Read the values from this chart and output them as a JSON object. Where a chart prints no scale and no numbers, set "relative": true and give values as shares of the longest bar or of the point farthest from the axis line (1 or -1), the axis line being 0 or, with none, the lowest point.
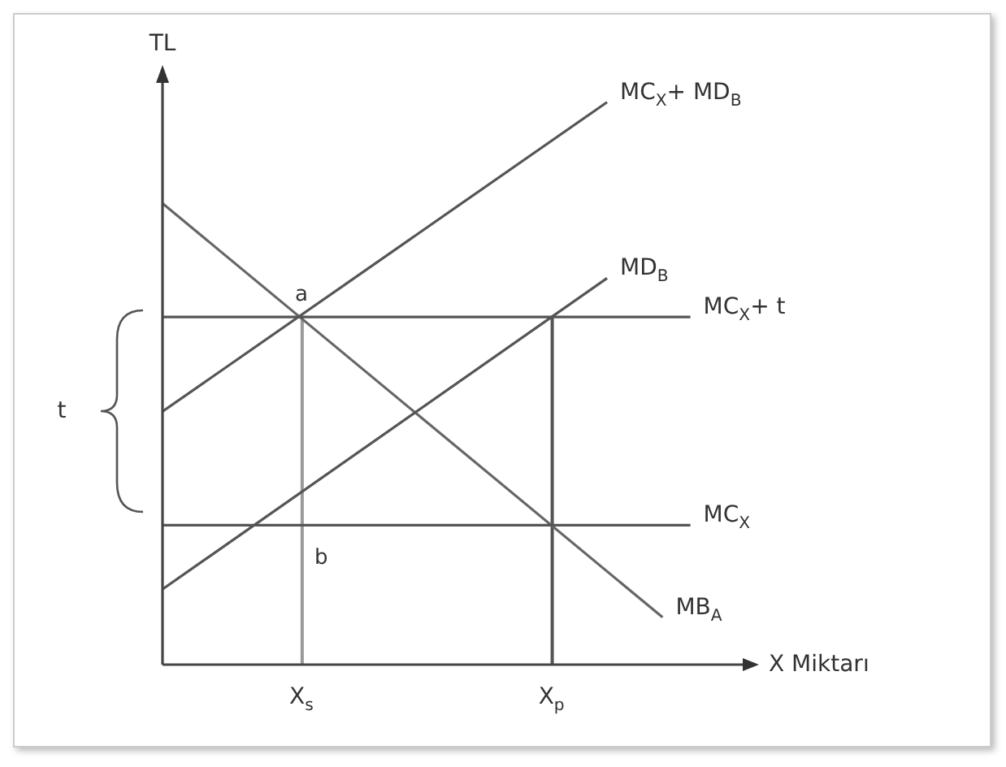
{
  "chart_data": {
    "type": "line",
    "relative": true,
    "ylabel": "TL",
    "xlabel": "X Miktarı",
    "categories": [
      null,
      null,
      null,
      null,
      null,
      "X$_{s}$",
      null,
      null,
      null,
      null,
      null,
      null,
      null,
      null,
      "X$_{p}$",
      null,
      null,
      null,
      null,
      null
    ],
    "series": [
      {
        "name": "MC$_{X}$+ MD$_{B}$",
        "color": "#555555",
        "values": [
          0.45,
          null,
          null,
          null,
          null,
          null,
          null,
          null,
          null,
          null,
          null,
          null,
          null,
          null,
          null,
          null,
          1,
          null,
          null,
          null
        ]
      },
      {
        "name": "MB$_{A}$",
        "color": "#666666",
        "values": [
          0.82,
          null,
          null,
          null,
          null,
          null,
          null,
          null,
          null,
          null,
          null,
          null,
          null,
          null,
          null,
          null,
          null,
          null,
          0.084,
          null
        ]
      },
      {
        "name": "MD$_{B}$",
        "color": "#555555",
        "values": [
          0.134,
          null,
          null,
          null,
          null,
          null,
          null,
          null,
          null,
          null,
          null,
          null,
          null,
          null,
          null,
          null,
          0.687,
          null,
          null,
          null
        ]
      },
      {
        "name": "MC$_{X}$+ t",
        "color": "#555555",
        "values": [
          0.618,
          null,
          null,
          null,
          null,
          null,
          null,
          null,
          null,
          null,
          null,
          null,
          null,
          null,
          null,
          null,
          null,
          null,
          null,
          0.618
        ]
      },
      {
        "name": "MC$_{X}$",
        "color": "#555555",
        "values": [
          0.248,
          null,
          null,
          null,
          null,
          null,
          null,
          null,
          null,
          null,
          null,
          null,
          null,
          null,
          null,
          null,
          null,
          null,
          null,
          0.248
        ]
      },
      {
        "type": "bar",
        "color": "#555555",
        "colors": [
          "#555555",
          "#555555",
          "#555555",
          "#555555",
          "#555555",
          "#999999",
          "#555555",
          "#555555",
          "#555555",
          "#555555",
          "#555555",
          "#555555",
          "#555555",
          "#555555",
          "#555555",
          "#555555",
          "#555555",
          "#555555",
          "#555555",
          "#555555"
        ],
        "values": [
          null,
          null,
          null,
          null,
          null,
          0.618,
          null,
          null,
          null,
          null,
          null,
          null,
          null,
          null,
          0.618,
          null,
          null,
          null,
          null,
          null
        ]
      }
    ],
    "annotations": [
      {
        "text": "a",
        "x": "X$_{s}$",
        "y": 0.618
      },
      {
        "text": "b",
        "x": "X$_{s}$",
        "y": 0.248
      },
      "t"
    ]
  }
}
